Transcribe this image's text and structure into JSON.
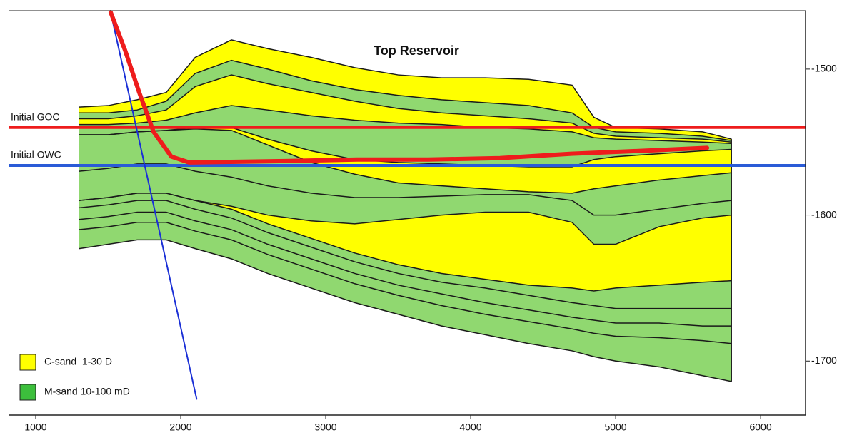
{
  "chart_data": {
    "type": "cross-section",
    "title": "Top Reservoir",
    "xlim": [
      813,
      6310
    ],
    "ylim": [
      -1737,
      -1460
    ],
    "xticks": [
      1000,
      2000,
      3000,
      4000,
      5000,
      6000
    ],
    "yticks": [
      -1700,
      -1600,
      -1500
    ],
    "x": [
      1300,
      1500,
      1700,
      1900,
      2100,
      2350,
      2600,
      2900,
      3200,
      3500,
      3800,
      4100,
      4400,
      4700,
      4850,
      5000,
      5300,
      5600,
      5800
    ],
    "horizons": [
      [
        -1526,
        -1525,
        -1521,
        -1516,
        -1492,
        -1480,
        -1486,
        -1492,
        -1499,
        -1504,
        -1506,
        -1506,
        -1507,
        -1511,
        -1533,
        -1540,
        -1541,
        -1543,
        -1548
      ],
      [
        -1530,
        -1530,
        -1528,
        -1522,
        -1503,
        -1494,
        -1500,
        -1508,
        -1514,
        -1518,
        -1521,
        -1523,
        -1525,
        -1530,
        -1540,
        -1543,
        -1544,
        -1546,
        -1549
      ],
      [
        -1534,
        -1534,
        -1532,
        -1528,
        -1512,
        -1504,
        -1510,
        -1516,
        -1522,
        -1527,
        -1530,
        -1532,
        -1534,
        -1537,
        -1544,
        -1546,
        -1547,
        -1548,
        -1550
      ],
      [
        -1538,
        -1538,
        -1537,
        -1535,
        -1530,
        -1525,
        -1528,
        -1532,
        -1535,
        -1537,
        -1538,
        -1540,
        -1541,
        -1543,
        -1547,
        -1548,
        -1549,
        -1550,
        -1551
      ],
      [
        -1545,
        -1545,
        -1543,
        -1542,
        -1540,
        -1540,
        -1548,
        -1556,
        -1562,
        -1564,
        -1565,
        -1566,
        -1567,
        -1567,
        -1562,
        -1560,
        -1558,
        -1556,
        -1555
      ],
      [
        -1545,
        -1545,
        -1543,
        -1542,
        -1541,
        -1542,
        -1552,
        -1564,
        -1572,
        -1578,
        -1580,
        -1582,
        -1584,
        -1585,
        -1582,
        -1580,
        -1576,
        -1573,
        -1571
      ],
      [
        -1570,
        -1568,
        -1565,
        -1565,
        -1570,
        -1574,
        -1580,
        -1585,
        -1588,
        -1588,
        -1587,
        -1586,
        -1586,
        -1590,
        -1600,
        -1600,
        -1596,
        -1592,
        -1590
      ],
      [
        -1590,
        -1588,
        -1585,
        -1585,
        -1590,
        -1594,
        -1600,
        -1604,
        -1606,
        -1603,
        -1600,
        -1598,
        -1598,
        -1605,
        -1620,
        -1620,
        -1608,
        -1602,
        -1600
      ],
      [
        -1590,
        -1588,
        -1585,
        -1585,
        -1590,
        -1596,
        -1606,
        -1616,
        -1626,
        -1634,
        -1640,
        -1644,
        -1648,
        -1650,
        -1652,
        -1650,
        -1648,
        -1646,
        -1645
      ],
      [
        -1595,
        -1593,
        -1590,
        -1590,
        -1596,
        -1602,
        -1612,
        -1622,
        -1632,
        -1640,
        -1646,
        -1650,
        -1655,
        -1660,
        -1662,
        -1664,
        -1664,
        -1664,
        -1664
      ],
      [
        -1603,
        -1601,
        -1598,
        -1598,
        -1604,
        -1610,
        -1620,
        -1630,
        -1640,
        -1648,
        -1654,
        -1660,
        -1665,
        -1670,
        -1672,
        -1674,
        -1674,
        -1676,
        -1676
      ],
      [
        -1610,
        -1608,
        -1605,
        -1605,
        -1611,
        -1617,
        -1627,
        -1637,
        -1647,
        -1655,
        -1662,
        -1668,
        -1673,
        -1678,
        -1681,
        -1683,
        -1684,
        -1686,
        -1688
      ],
      [
        -1623,
        -1620,
        -1617,
        -1617,
        -1623,
        -1630,
        -1640,
        -1650,
        -1660,
        -1668,
        -1676,
        -1682,
        -1688,
        -1693,
        -1697,
        -1700,
        -1704,
        -1710,
        -1714
      ]
    ],
    "band_colors": [
      "#ffff00",
      "#90d870",
      "#ffff00",
      "#90d870",
      "#ffff00",
      "#90d870",
      "#90d870",
      "#ffff00",
      "#90d870",
      "#90d870",
      "#90d870",
      "#90d870"
    ],
    "legend": [
      {
        "name": "C-sand  1-30 D",
        "color": "#ffff00"
      },
      {
        "name": "M-sand 10-100 mD",
        "color": "#3cbf3c"
      }
    ],
    "contacts": [
      {
        "name": "Initial GOC",
        "value": -1540,
        "color": "#ee1c1c"
      },
      {
        "name": "Initial OWC",
        "value": -1566,
        "color": "#2a5bd7"
      }
    ],
    "wells": [
      {
        "x": [
          1517,
          2110
        ],
        "y": [
          -1461,
          -1726
        ],
        "color": "#1a2fd6",
        "width": 2
      },
      {
        "x": [
          1517,
          1616,
          1714,
          1813,
          1936,
          2059,
          2724,
          3217,
          3709,
          4202,
          4695,
          5187,
          5631
        ],
        "y": [
          -1461,
          -1487,
          -1516,
          -1543,
          -1560,
          -1564,
          -1563,
          -1562,
          -1562,
          -1561,
          -1558,
          -1556,
          -1554
        ],
        "color": "#ee1c1c",
        "width": 6
      }
    ]
  }
}
